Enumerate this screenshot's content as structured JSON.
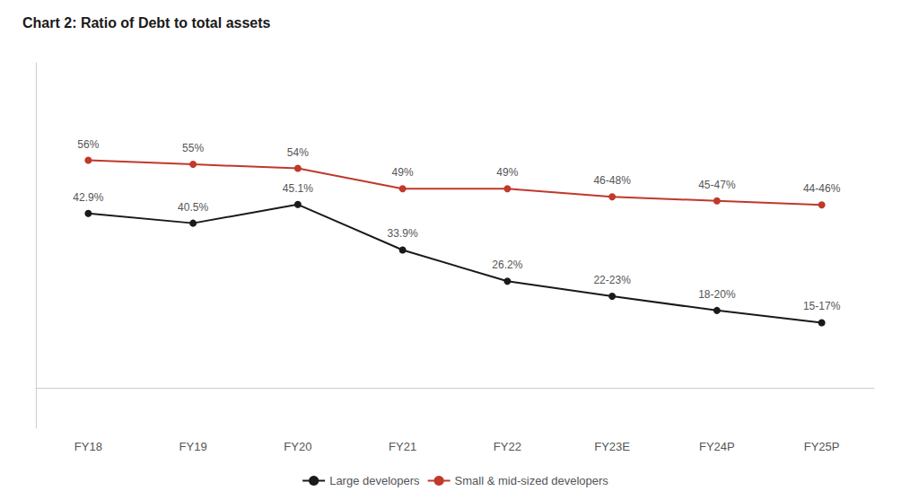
{
  "chart_data": {
    "type": "line",
    "title": "Chart 2: Ratio of Debt to total assets",
    "categories": [
      "FY18",
      "FY19",
      "FY20",
      "FY21",
      "FY22",
      "FY23E",
      "FY24P",
      "FY25P"
    ],
    "series": [
      {
        "name": "Large developers",
        "color": "#1a1a1a",
        "marker": "circle",
        "line_style": "solid",
        "values": [
          42.9,
          40.5,
          45.1,
          33.9,
          26.2,
          22.5,
          19.0,
          16.0
        ],
        "value_labels": [
          "42.9%",
          "40.5%",
          "45.1%",
          "33.9%",
          "26.2%",
          "22-23%",
          "18-20%",
          "15-17%"
        ]
      },
      {
        "name": "Small & mid-sized developers",
        "color": "#c0392b",
        "marker": "circle",
        "line_style": "solid",
        "values": [
          56.0,
          55.0,
          54.0,
          49.0,
          49.0,
          47.0,
          46.0,
          45.0
        ],
        "value_labels": [
          "56%",
          "55%",
          "54%",
          "49%",
          "49%",
          "46-48%",
          "45-47%",
          "44-46%"
        ]
      }
    ],
    "ylim": [
      -10,
      80
    ],
    "tick_labels": "x",
    "grid": false,
    "legend": "bottom",
    "data_labels": true
  }
}
